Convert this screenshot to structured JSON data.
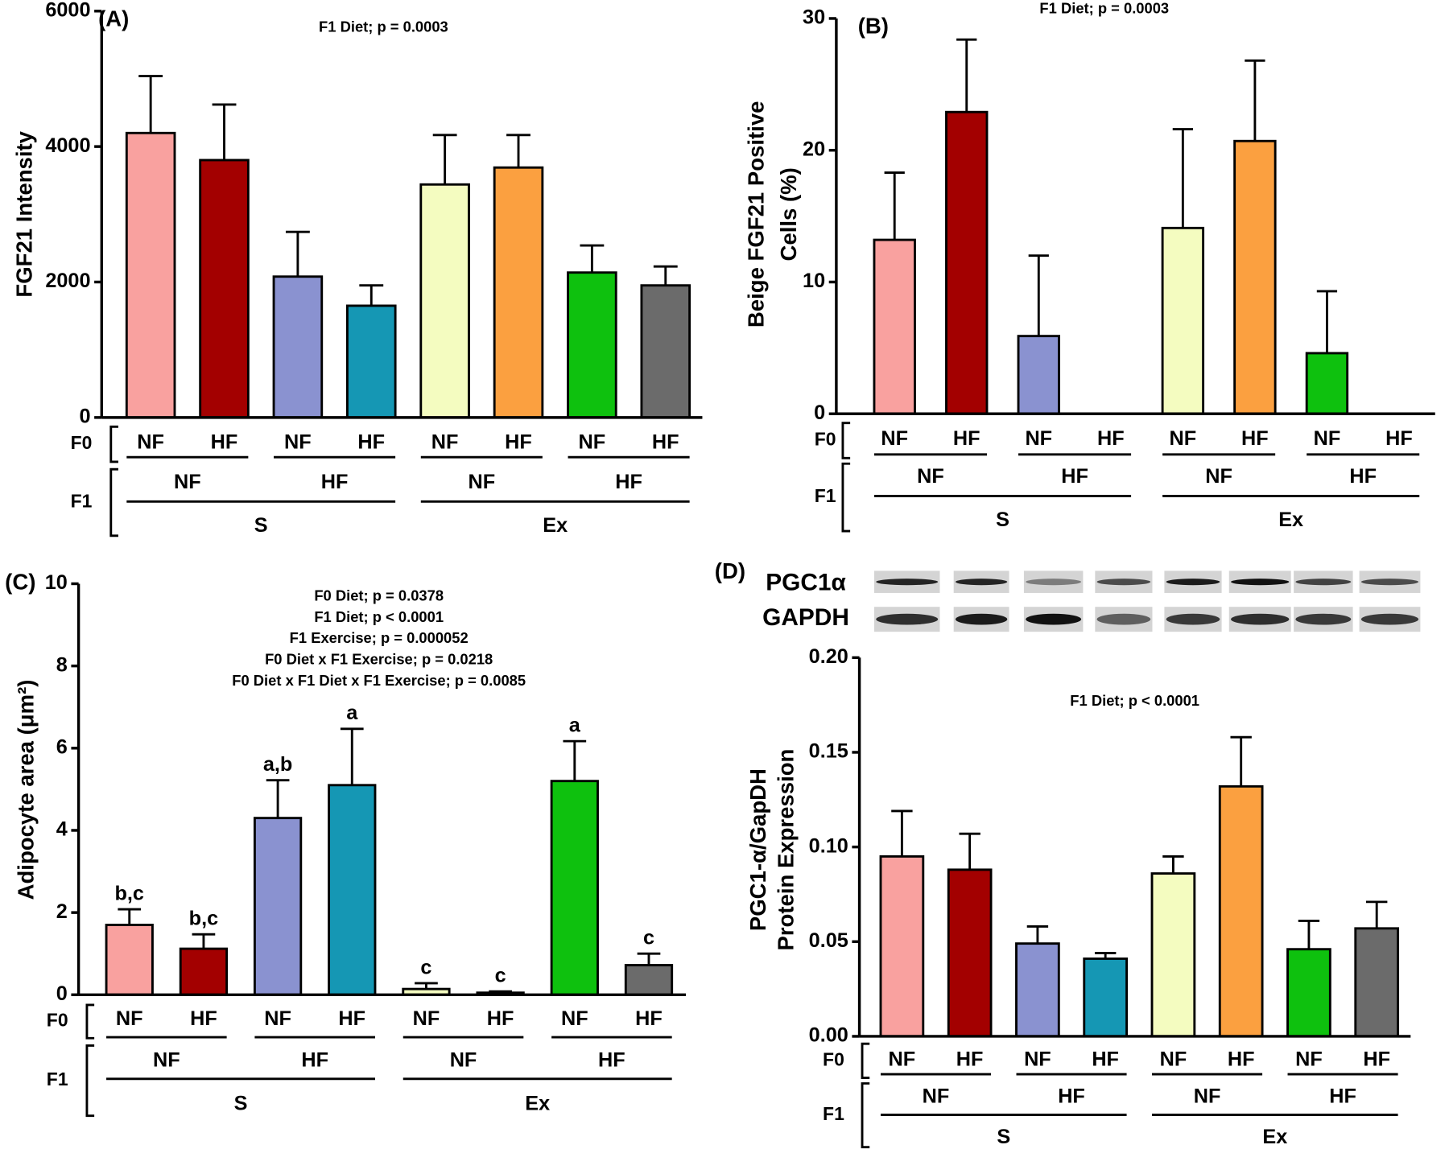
{
  "chart_data": [
    {
      "type": "bar",
      "panel_label": "(A)",
      "annotations": [
        "F1 Diet; p = 0.0003"
      ],
      "ylabel": [
        "FGF21 Intensity"
      ],
      "ylim": [
        0,
        6000
      ],
      "yticks": [
        0,
        2000,
        4000,
        6000
      ],
      "f0_label": "F0",
      "f1_label": "F1",
      "categories": [
        "NF",
        "HF",
        "NF",
        "HF",
        "NF",
        "HF",
        "NF",
        "HF"
      ],
      "f1": [
        "NF",
        "HF",
        "NF",
        "HF"
      ],
      "exercise": [
        "S",
        "Ex"
      ],
      "values": [
        4200,
        3800,
        2080,
        1650,
        3440,
        3690,
        2140,
        1950
      ],
      "errors": [
        840,
        820,
        660,
        300,
        730,
        480,
        400,
        280
      ],
      "colors": [
        "#f9a19f",
        "#a30000",
        "#8a92d0",
        "#1597b4",
        "#f4fcc0",
        "#fba040",
        "#0ec10e",
        "#6b6b6b"
      ]
    },
    {
      "type": "bar",
      "panel_label": "(B)",
      "annotations": [
        "F1 Diet; p = 0.0003"
      ],
      "ylabel": [
        "Beige FGF21 Positive",
        "Cells (%)"
      ],
      "ylim": [
        0,
        30
      ],
      "yticks": [
        0,
        10,
        20,
        30
      ],
      "f0_label": "F0",
      "f1_label": "F1",
      "categories": [
        "NF",
        "HF",
        "NF",
        "HF",
        "NF",
        "HF",
        "NF",
        "HF"
      ],
      "f1": [
        "NF",
        "HF",
        "NF",
        "HF"
      ],
      "exercise": [
        "S",
        "Ex"
      ],
      "values": [
        13.2,
        22.9,
        5.9,
        0,
        14.1,
        20.7,
        4.6,
        0
      ],
      "errors": [
        5.1,
        5.5,
        6.1,
        0,
        7.5,
        6.1,
        4.7,
        0
      ],
      "colors": [
        "#f9a19f",
        "#a30000",
        "#8a92d0",
        "#1597b4",
        "#f4fcc0",
        "#fba040",
        "#0ec10e",
        "#6b6b6b"
      ]
    },
    {
      "type": "bar",
      "panel_label": "(C)",
      "annotations": [
        "F0 Diet; p = 0.0378",
        "F1 Diet; p < 0.0001",
        "F1 Exercise; p = 0.000052",
        "F0 Diet x F1 Exercise; p = 0.0218",
        "F0 Diet x F1 Diet x F1 Exercise; p = 0.0085"
      ],
      "ylabel": [
        "Adipocyte area  (μm²)"
      ],
      "ylim": [
        0,
        10
      ],
      "yticks": [
        0,
        2,
        4,
        6,
        8,
        10
      ],
      "f0_label": "F0",
      "f1_label": "F1",
      "categories": [
        "NF",
        "HF",
        "NF",
        "HF",
        "NF",
        "HF",
        "NF",
        "HF"
      ],
      "f1": [
        "NF",
        "HF",
        "NF",
        "HF"
      ],
      "exercise": [
        "S",
        "Ex"
      ],
      "values": [
        1.7,
        1.12,
        4.3,
        5.1,
        0.14,
        0.05,
        5.2,
        0.72
      ],
      "errors": [
        0.38,
        0.35,
        0.92,
        1.37,
        0.14,
        0.03,
        0.97,
        0.28
      ],
      "bar_labels": [
        "b,c",
        "b,c",
        "a,b",
        "a",
        "c",
        "c",
        "a",
        "c"
      ],
      "colors": [
        "#f9a19f",
        "#a30000",
        "#8a92d0",
        "#1597b4",
        "#f4fcc0",
        "#fba040",
        "#0ec10e",
        "#6b6b6b"
      ]
    },
    {
      "type": "bar",
      "panel_label": "(D)",
      "blot_labels": [
        "PGC1α",
        "GAPDH"
      ],
      "annotations": [
        "F1 Diet; p < 0.0001"
      ],
      "ylabel": [
        "PGC1-α/GapDH",
        "Protein Expression"
      ],
      "ylim": [
        0,
        0.2
      ],
      "yticks": [
        {
          "value": 0,
          "label": "0.00"
        },
        {
          "value": 0.05,
          "label": "0.05"
        },
        {
          "value": 0.1,
          "label": "0.10"
        },
        {
          "value": 0.15,
          "label": "0.15"
        },
        {
          "value": 0.2,
          "label": "0.20"
        }
      ],
      "f0_label": "F0",
      "f1_label": "F1",
      "categories": [
        "NF",
        "HF",
        "NF",
        "HF",
        "NF",
        "HF",
        "NF",
        "HF"
      ],
      "f1": [
        "NF",
        "HF",
        "NF",
        "HF"
      ],
      "exercise": [
        "S",
        "Ex"
      ],
      "values": [
        0.095,
        0.088,
        0.049,
        0.041,
        0.086,
        0.132,
        0.046,
        0.057
      ],
      "errors": [
        0.024,
        0.019,
        0.009,
        0.003,
        0.009,
        0.026,
        0.015,
        0.014
      ],
      "colors": [
        "#f9a19f",
        "#a30000",
        "#8a92d0",
        "#1597b4",
        "#f4fcc0",
        "#fba040",
        "#0ec10e",
        "#6b6b6b"
      ]
    }
  ]
}
